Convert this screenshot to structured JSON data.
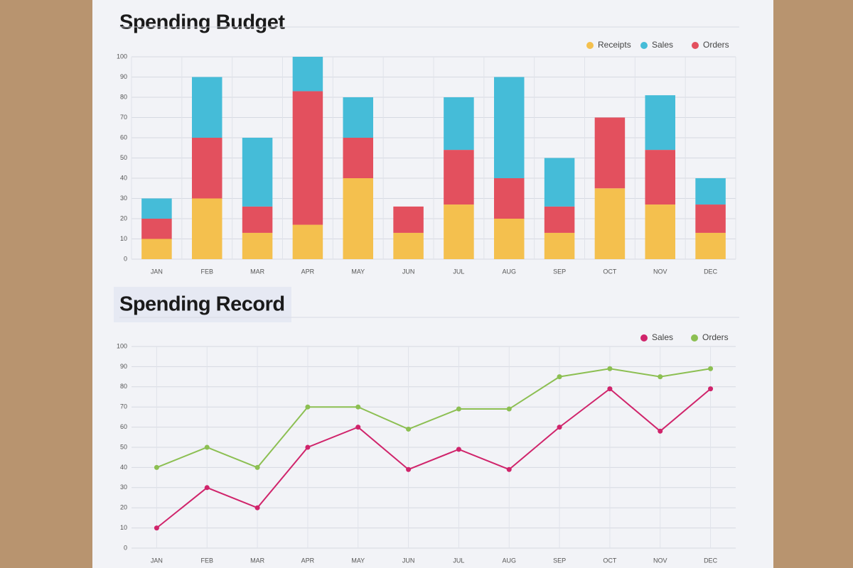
{
  "chart_data": [
    {
      "type": "bar",
      "title": "Spending Budget",
      "stacked": true,
      "grid": true,
      "categories": [
        "JAN",
        "FEB",
        "MAR",
        "APR",
        "MAY",
        "JUN",
        "JUL",
        "AUG",
        "SEP",
        "OCT",
        "NOV",
        "DEC"
      ],
      "series": [
        {
          "name": "Receipts",
          "color": "#f4c04e",
          "values": [
            10,
            30,
            13,
            17,
            40,
            13,
            27,
            20,
            13,
            35,
            27,
            13
          ]
        },
        {
          "name": "Orders",
          "color": "#e3505e",
          "values": [
            10,
            30,
            13,
            66,
            20,
            13,
            27,
            20,
            13,
            35,
            27,
            14
          ]
        },
        {
          "name": "Sales",
          "color": "#45bcd8",
          "values": [
            10,
            30,
            34,
            17,
            20,
            0,
            26,
            50,
            24,
            0,
            27,
            13
          ]
        }
      ],
      "legend_order": [
        0,
        2,
        1
      ],
      "ylim": [
        0,
        100
      ],
      "yticks": [
        0,
        10,
        20,
        30,
        40,
        50,
        60,
        70,
        80,
        90,
        100
      ]
    },
    {
      "type": "line",
      "title": "Spending Record",
      "grid": true,
      "categories": [
        "JAN",
        "FEB",
        "MAR",
        "APR",
        "MAY",
        "JUN",
        "JUL",
        "AUG",
        "SEP",
        "OCT",
        "NOV",
        "DEC"
      ],
      "series": [
        {
          "name": "Sales",
          "color": "#d0246b",
          "values": [
            10,
            30,
            20,
            50,
            60,
            39,
            49,
            39,
            60,
            79,
            58,
            79
          ]
        },
        {
          "name": "Orders",
          "color": "#8cbf52",
          "values": [
            40,
            50,
            40,
            70,
            70,
            59,
            69,
            69,
            85,
            89,
            85,
            89
          ]
        }
      ],
      "ylim": [
        0,
        100
      ],
      "yticks": [
        0,
        10,
        20,
        30,
        40,
        50,
        60,
        70,
        80,
        90,
        100
      ]
    }
  ]
}
